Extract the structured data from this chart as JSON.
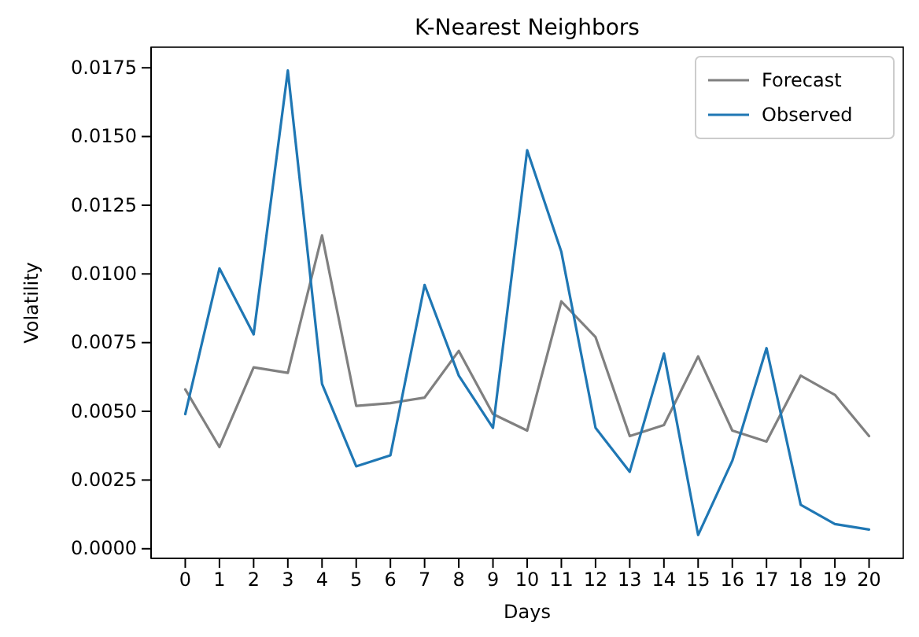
{
  "chart_data": {
    "type": "line",
    "title": "K-Nearest Neighbors",
    "xlabel": "Days",
    "ylabel": "Volatility",
    "x": [
      0,
      1,
      2,
      3,
      4,
      5,
      6,
      7,
      8,
      9,
      10,
      11,
      12,
      13,
      14,
      15,
      16,
      17,
      18,
      19,
      20
    ],
    "series": [
      {
        "name": "Forecast",
        "color": "#808080",
        "values": [
          0.0058,
          0.0037,
          0.0066,
          0.0064,
          0.0114,
          0.0052,
          0.0053,
          0.0055,
          0.0072,
          0.0049,
          0.0043,
          0.009,
          0.0077,
          0.0041,
          0.0045,
          0.007,
          0.0043,
          0.0039,
          0.0063,
          0.0056,
          0.0041
        ]
      },
      {
        "name": "Observed",
        "color": "#1f77b4",
        "values": [
          0.0049,
          0.0102,
          0.0078,
          0.0174,
          0.006,
          0.003,
          0.0034,
          0.0096,
          0.0063,
          0.0044,
          0.0145,
          0.0108,
          0.0044,
          0.0028,
          0.0071,
          0.0005,
          0.0032,
          0.0073,
          0.0016,
          0.0009,
          0.0007
        ]
      }
    ],
    "xlim": [
      -1,
      21
    ],
    "xticks": [
      0,
      1,
      2,
      3,
      4,
      5,
      6,
      7,
      8,
      9,
      10,
      11,
      12,
      13,
      14,
      15,
      16,
      17,
      18,
      19,
      20
    ],
    "ylim": [
      -0.00035,
      0.01825
    ],
    "yticks": [
      {
        "value": 0,
        "label": "0.0000"
      },
      {
        "value": 0.0025,
        "label": "0.0025"
      },
      {
        "value": 0.005,
        "label": "0.0050"
      },
      {
        "value": 0.0075,
        "label": "0.0075"
      },
      {
        "value": 0.01,
        "label": "0.0100"
      },
      {
        "value": 0.0125,
        "label": "0.0125"
      },
      {
        "value": 0.015,
        "label": "0.0150"
      },
      {
        "value": 0.0175,
        "label": "0.0175"
      }
    ],
    "grid": false,
    "legend": "top right",
    "line_style": "solid",
    "marker": "none"
  }
}
